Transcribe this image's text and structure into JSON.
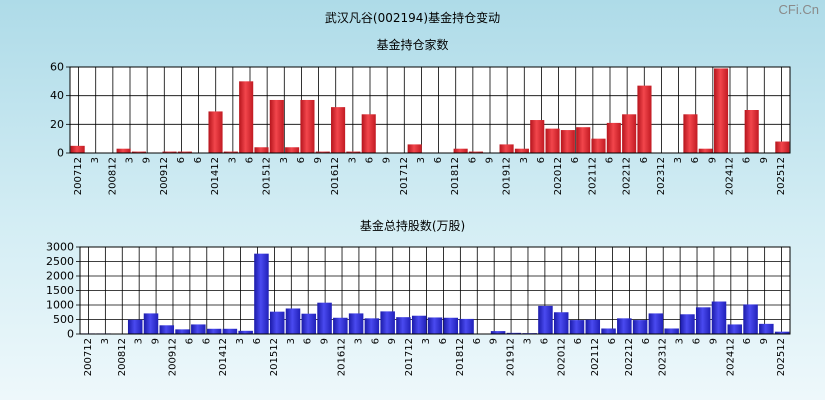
{
  "header": {
    "title": "武汉凡谷(002194)基金持仓变动",
    "watermark": "CFi.Cn"
  },
  "colors": {
    "top_bar": "#e8232b",
    "bottom_bar": "#2b2bdd",
    "grid": "#000000",
    "plot_bg": "#ffffff"
  },
  "chart_data": [
    {
      "type": "bar",
      "title": "基金持仓家数",
      "ylim": [
        0,
        60
      ],
      "yticks": [
        0,
        20,
        40,
        60
      ],
      "x_tick_labels": [
        "200712",
        "3",
        "200812",
        "3",
        "9",
        "200912",
        "6",
        "6",
        "201412",
        "3",
        "6",
        "201512",
        "3",
        "6",
        "9",
        "201612",
        "3",
        "6",
        "9",
        "201712",
        "3",
        "6",
        "201812",
        "6",
        "9",
        "201912",
        "3",
        "6",
        "202012",
        "6",
        "202112",
        "6",
        "202212",
        "6",
        "202312",
        "3",
        "6",
        "9",
        "202412",
        "6",
        "9",
        "202512"
      ],
      "values": [
        5,
        0,
        0,
        3,
        1,
        0,
        1,
        1,
        0,
        29,
        1,
        50,
        4,
        37,
        4,
        37,
        1,
        32,
        1,
        27,
        0,
        0,
        6,
        0,
        0,
        3,
        1,
        0,
        6,
        3,
        23,
        17,
        16,
        18,
        10,
        21,
        27,
        47,
        0,
        0,
        27,
        3,
        59,
        0,
        30,
        0,
        8
      ]
    },
    {
      "type": "bar",
      "title": "基金总持股数(万股)",
      "ylim": [
        0,
        3000
      ],
      "yticks": [
        0,
        500,
        1000,
        1500,
        2000,
        2500,
        3000
      ],
      "x_tick_labels": [
        "200712",
        "3",
        "200812",
        "3",
        "9",
        "200912",
        "6",
        "6",
        "201412",
        "3",
        "6",
        "201512",
        "3",
        "6",
        "9",
        "201612",
        "3",
        "6",
        "9",
        "201712",
        "3",
        "6",
        "201812",
        "6",
        "9",
        "201912",
        "3",
        "6",
        "202012",
        "6",
        "202112",
        "6",
        "202212",
        "6",
        "202312",
        "3",
        "6",
        "9",
        "202412",
        "6",
        "9",
        "202512"
      ],
      "values": [
        20,
        20,
        0,
        490,
        710,
        300,
        160,
        330,
        180,
        180,
        110,
        2770,
        770,
        880,
        700,
        1080,
        560,
        710,
        540,
        780,
        580,
        630,
        570,
        560,
        520,
        0,
        100,
        40,
        30,
        970,
        750,
        480,
        490,
        190,
        540,
        480,
        710,
        190,
        680,
        920,
        1120,
        330,
        1020,
        350,
        80
      ]
    }
  ]
}
